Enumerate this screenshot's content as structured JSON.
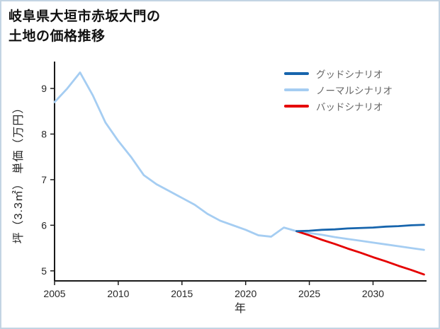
{
  "title": {
    "line1": "岐阜県大垣市赤坂大門の",
    "line2": "土地の価格推移"
  },
  "chart_data": {
    "type": "line",
    "title": "岐阜県大垣市赤坂大門の土地の価格推移",
    "xlabel": "年",
    "ylabel": "坪（3.3㎡） 単価（万円）",
    "x_ticks": [
      2005,
      2010,
      2015,
      2020,
      2025,
      2030
    ],
    "y_ticks": [
      5,
      6,
      7,
      8,
      9
    ],
    "xlim": [
      2005,
      2034.2
    ],
    "ylim": [
      4.78,
      9.59
    ],
    "grid": false,
    "legend_position": "top-right",
    "axis_color": "#1a1a1a",
    "tick_color": "#262626",
    "series": [
      {
        "name": "グッドシナリオ",
        "color": "#1765ad",
        "x": [
          2024,
          2025,
          2026,
          2027,
          2028,
          2029,
          2030,
          2031,
          2032,
          2033,
          2034
        ],
        "values": [
          5.87,
          5.88,
          5.9,
          5.91,
          5.93,
          5.94,
          5.95,
          5.97,
          5.98,
          6.0,
          6.01
        ]
      },
      {
        "name": "ノーマルシナリオ",
        "color": "#a5cdf2",
        "x": [
          2005,
          2006,
          2007,
          2008,
          2009,
          2010,
          2011,
          2012,
          2013,
          2014,
          2015,
          2016,
          2017,
          2018,
          2019,
          2020,
          2021,
          2022,
          2023,
          2024,
          2025,
          2026,
          2027,
          2028,
          2029,
          2030,
          2031,
          2032,
          2033,
          2034
        ],
        "values": [
          8.7,
          9.0,
          9.35,
          8.85,
          8.25,
          7.85,
          7.5,
          7.1,
          6.9,
          6.75,
          6.6,
          6.45,
          6.25,
          6.1,
          6.0,
          5.9,
          5.78,
          5.75,
          5.95,
          5.87,
          5.83,
          5.79,
          5.74,
          5.7,
          5.66,
          5.62,
          5.58,
          5.54,
          5.5,
          5.46
        ]
      },
      {
        "name": "バッドシナリオ",
        "color": "#e50000",
        "x": [
          2024,
          2025,
          2026,
          2027,
          2028,
          2029,
          2030,
          2031,
          2032,
          2033,
          2034
        ],
        "values": [
          5.87,
          5.78,
          5.68,
          5.59,
          5.49,
          5.4,
          5.3,
          5.21,
          5.11,
          5.02,
          4.92
        ]
      }
    ]
  }
}
